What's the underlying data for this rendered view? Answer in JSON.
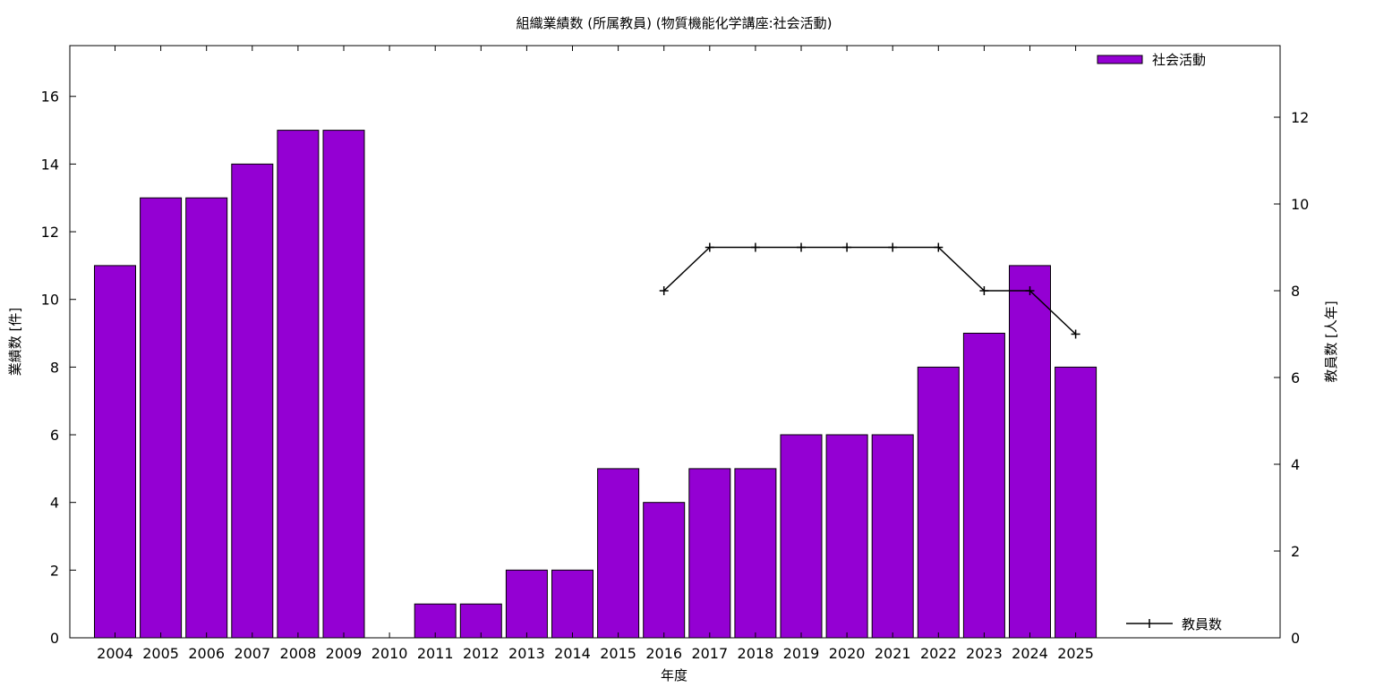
{
  "chart_data": {
    "type": "bar",
    "title": "組織業績数 (所属教員) (物質機能化学講座:社会活動)",
    "xlabel": "年度",
    "ylabel": "業績数 [件]",
    "y2label": "教員数 [人年]",
    "categories": [
      "2004",
      "2005",
      "2006",
      "2007",
      "2008",
      "2009",
      "2010",
      "2011",
      "2012",
      "2013",
      "2014",
      "2015",
      "2016",
      "2017",
      "2018",
      "2019",
      "2020",
      "2021",
      "2022",
      "2023",
      "2024",
      "2025"
    ],
    "series": [
      {
        "name": "社会活動",
        "type": "bar",
        "axis": "left",
        "color": "#9400d3",
        "values": [
          11,
          13,
          13,
          14,
          15,
          15,
          0,
          1,
          1,
          2,
          2,
          5,
          4,
          5,
          5,
          6,
          6,
          6,
          8,
          9,
          11,
          8
        ]
      },
      {
        "name": "教員数",
        "type": "line",
        "axis": "right",
        "color": "#000000",
        "values": [
          null,
          null,
          null,
          null,
          null,
          null,
          null,
          null,
          null,
          null,
          null,
          null,
          8,
          9,
          9,
          9,
          9,
          9,
          9,
          8,
          8,
          7
        ]
      }
    ],
    "ylim": [
      0,
      17.5
    ],
    "y2lim": [
      0,
      13.65
    ],
    "yticks": [
      0,
      2,
      4,
      6,
      8,
      10,
      12,
      14,
      16
    ],
    "y2ticks": [
      0,
      2,
      4,
      6,
      8,
      10,
      12
    ],
    "legend_position": "top-right (bars), bottom-right (line)",
    "grid": false
  }
}
